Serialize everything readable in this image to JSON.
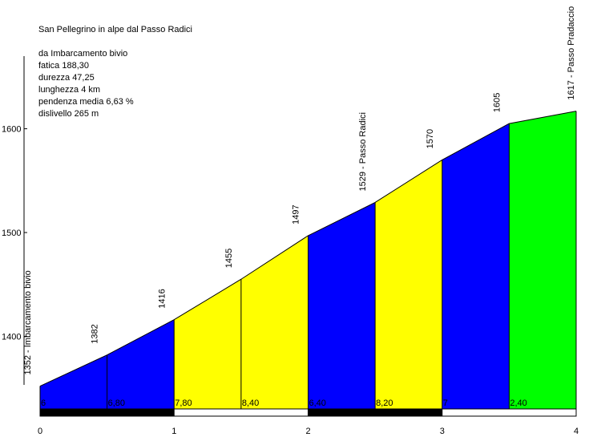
{
  "title": "San Pellegrino in alpe dal Passo Radici",
  "stats": {
    "start": "da Imbarcamento bivio",
    "fatica": "fatica 188,30",
    "durezza": "durezza 47,25",
    "lunghezza": "lunghezza 4 km",
    "pendenza": "pendenza media 6,63 %",
    "dislivello": "dislivello 265 m"
  },
  "chart_data": {
    "type": "area",
    "title": "San Pellegrino in alpe dal Passo Radici",
    "xlabel": "",
    "ylabel": "",
    "xlim": [
      0,
      4
    ],
    "ylim": [
      1330,
      1670
    ],
    "x_ticks": [
      "0",
      "1",
      "2",
      "3",
      "4"
    ],
    "y_ticks": [
      "1400",
      "1500",
      "1600"
    ],
    "points": [
      {
        "x": 0.0,
        "y": 1352,
        "label": "1352 - Imbarcamento bivio"
      },
      {
        "x": 0.5,
        "y": 1382,
        "label": "1382"
      },
      {
        "x": 1.0,
        "y": 1416,
        "label": "1416"
      },
      {
        "x": 1.5,
        "y": 1455,
        "label": "1455"
      },
      {
        "x": 2.0,
        "y": 1497,
        "label": "1497"
      },
      {
        "x": 2.5,
        "y": 1529,
        "label": "1529 - Passo Radici"
      },
      {
        "x": 3.0,
        "y": 1570,
        "label": "1570"
      },
      {
        "x": 3.5,
        "y": 1605,
        "label": "1605"
      },
      {
        "x": 4.0,
        "y": 1617,
        "label": "1617 - Passo Pradaccio"
      }
    ],
    "segments": [
      {
        "x0": 0.0,
        "x1": 0.5,
        "gradient": "6",
        "color": "#0000ff"
      },
      {
        "x0": 0.5,
        "x1": 1.0,
        "gradient": "6,80",
        "color": "#0000ff"
      },
      {
        "x0": 1.0,
        "x1": 1.5,
        "gradient": "7,80",
        "color": "#ffff00"
      },
      {
        "x0": 1.5,
        "x1": 2.0,
        "gradient": "8,40",
        "color": "#ffff00"
      },
      {
        "x0": 2.0,
        "x1": 2.5,
        "gradient": "6,40",
        "color": "#0000ff"
      },
      {
        "x0": 2.5,
        "x1": 3.0,
        "gradient": "8,20",
        "color": "#ffff00"
      },
      {
        "x0": 3.0,
        "x1": 3.5,
        "gradient": "7",
        "color": "#0000ff"
      },
      {
        "x0": 3.5,
        "x1": 4.0,
        "gradient": "2,40",
        "color": "#00ff00"
      }
    ],
    "km_bar_colors": [
      "#000000",
      "#ffffff",
      "#000000",
      "#ffffff"
    ],
    "grid": false,
    "legend": "none"
  }
}
